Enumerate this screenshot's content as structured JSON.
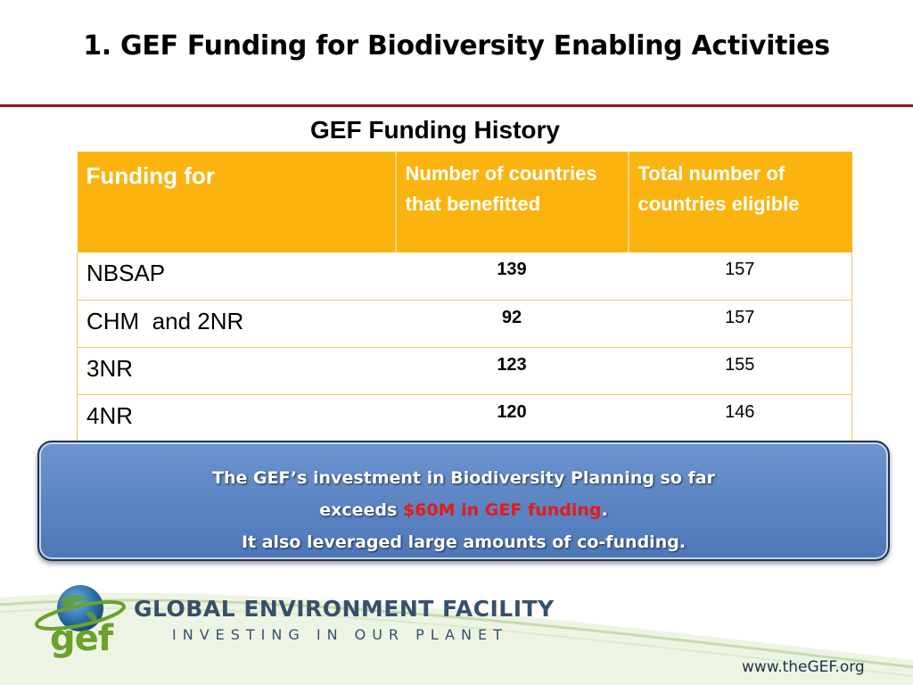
{
  "slide": {
    "title": "1. GEF Funding for Biodiversity Enabling Activities"
  },
  "table": {
    "caption": "GEF Funding History",
    "headers": [
      "Funding for",
      "Number of countries that benefitted",
      "Total number of countries eligible"
    ],
    "rows": [
      {
        "name": "NBSAP",
        "benefitted": "139",
        "eligible": "157"
      },
      {
        "name": "CHM  and 2NR",
        "benefitted": "92",
        "eligible": "157"
      },
      {
        "name": "3NR",
        "benefitted": "123",
        "eligible": "155"
      },
      {
        "name": "4NR",
        "benefitted": "120",
        "eligible": "146"
      }
    ]
  },
  "callout": {
    "line1": "The GEF’s investment in Biodiversity Planning so far",
    "line2_prefix": "exceeds ",
    "line2_highlight": "$60M in GEF funding",
    "line2_suffix": ".",
    "line3": "It also leveraged large amounts of co-funding."
  },
  "footer": {
    "logo_text": "gef",
    "org_name": "GLOBAL ENVIRONMENT FACILITY",
    "tagline": "INVESTING IN OUR PLANET",
    "url": "www.theGEF.org"
  },
  "colors": {
    "title_rule": "#8b1a1a",
    "table_header": "#fbb40f",
    "callout_fill": "#4f81bd",
    "highlight": "#e41b17",
    "brand_green": "#6aa22c",
    "brand_blue": "#36506b"
  }
}
